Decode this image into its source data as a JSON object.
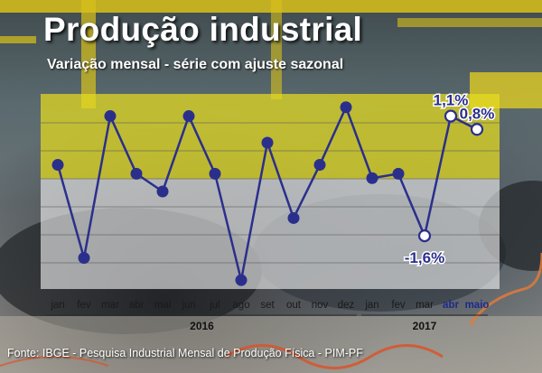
{
  "header": {
    "title": "Produção industrial",
    "subtitle": "Variação mensal - série com ajuste sazonal"
  },
  "footer": {
    "source": "Fonte: IBGE - Pesquisa Industrial Mensal de Produção Física - PIM-PF"
  },
  "colors": {
    "line": "#2b2f8c",
    "marker": "#2b2f8c",
    "highlight_marker": "#ffffff",
    "highlight_label": "#2b2f8c",
    "plot_top_band": "#e6dc1e",
    "plot_bottom_band": "#f2f2f2"
  },
  "chart_data": {
    "type": "line",
    "title": "Produção industrial",
    "subtitle": "Variação mensal - série com ajuste sazonal",
    "xlabel": "",
    "ylabel": "",
    "ylim": [
      -2.8,
      1.6
    ],
    "grid": true,
    "legend": "none",
    "categories": [
      "jan",
      "fev",
      "mar",
      "abr",
      "mai",
      "jun",
      "jul",
      "ago",
      "set",
      "out",
      "nov",
      "dez",
      "jan",
      "fev",
      "mar",
      "abr",
      "maio"
    ],
    "year_groups": [
      {
        "label": "2016",
        "start": 0,
        "end": 11
      },
      {
        "label": "2017",
        "start": 12,
        "end": 16
      }
    ],
    "series": [
      {
        "values": [
          0.0,
          -2.1,
          1.1,
          -0.2,
          -0.6,
          1.1,
          -0.2,
          -2.6,
          0.5,
          -1.2,
          0.0,
          1.3,
          -0.3,
          -0.2,
          -1.6,
          1.1,
          0.8
        ]
      }
    ],
    "highlighted_points": [
      {
        "index": 14,
        "label": "-1,6%"
      },
      {
        "index": 15,
        "label": "1,1%"
      },
      {
        "index": 16,
        "label": "0,8%"
      }
    ]
  }
}
